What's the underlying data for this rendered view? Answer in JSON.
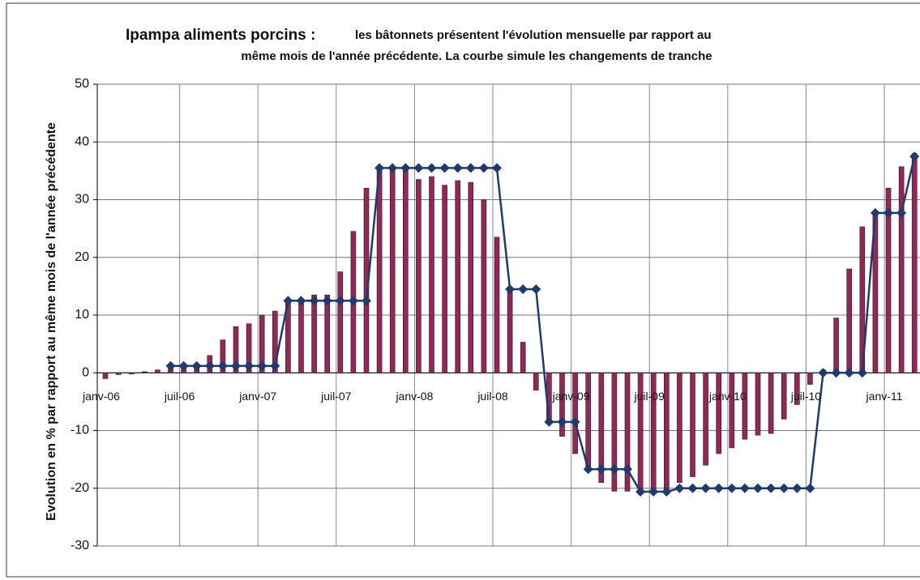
{
  "chart_data": {
    "type": "bar_line",
    "title": "Ipampa aliments porcins :",
    "subtitle": [
      "les bâtonnets présentent l'évolution mensuelle par rapport au",
      "même mois de l'année précédente. La courbe simule les changements de tranche"
    ],
    "y_label": "Evolution en % par rapport au même mois de l'année précédente",
    "categories": [
      "janv-06",
      null,
      null,
      null,
      null,
      null,
      "juil-06",
      null,
      null,
      null,
      null,
      null,
      "janv-07",
      null,
      null,
      null,
      null,
      null,
      "juil-07",
      null,
      null,
      null,
      null,
      null,
      "janv-08",
      null,
      null,
      null,
      null,
      null,
      "juil-08",
      null,
      null,
      null,
      null,
      null,
      "janv-09",
      null,
      null,
      null,
      null,
      null,
      "juil-09",
      null,
      null,
      null,
      null,
      null,
      "janv-10",
      null,
      null,
      null,
      null,
      null,
      "juil-10",
      null,
      null,
      null,
      null,
      null,
      "janv-11",
      null,
      null
    ],
    "series": [
      {
        "name": "Evolution mensuelle",
        "kind": "bar",
        "color": "#8e2a55",
        "values": [
          -1,
          -0.3,
          -0.2,
          0.2,
          0.5,
          1,
          1.2,
          1.5,
          3,
          5.7,
          8,
          8.5,
          10,
          10.7,
          12.5,
          12.8,
          13.5,
          13.5,
          17.5,
          24.5,
          32,
          35.5,
          35.5,
          35,
          33.5,
          34,
          32.5,
          33.3,
          33,
          30,
          23.5,
          14.5,
          5.3,
          -3,
          -8.5,
          -11,
          -14,
          -17,
          -19,
          -20.5,
          -20.5,
          -21,
          -20.5,
          -20.5,
          -19,
          -18,
          -16,
          -14,
          -13,
          -11.5,
          -10.8,
          -10.5,
          -8,
          -5.5,
          -2,
          0.5,
          9.5,
          18,
          25.3,
          28,
          32,
          35.7,
          38
        ]
      },
      {
        "name": "Changements de tranche",
        "kind": "line",
        "color": "#1f3a70",
        "values": [
          null,
          null,
          null,
          null,
          null,
          1.2,
          1.2,
          1.2,
          1.2,
          1.2,
          1.2,
          1.2,
          1.2,
          1.2,
          12.5,
          12.5,
          12.5,
          12.5,
          12.5,
          12.5,
          12.5,
          35.5,
          35.5,
          35.5,
          35.5,
          35.5,
          35.5,
          35.5,
          35.5,
          35.5,
          35.5,
          14.5,
          14.5,
          14.5,
          -8.5,
          -8.5,
          -8.5,
          -16.7,
          -16.7,
          -16.7,
          -16.7,
          -20.6,
          -20.6,
          -20.6,
          -20,
          -20,
          -20,
          -20,
          -20,
          -20,
          -20,
          -20,
          -20,
          -20,
          -20,
          0,
          0,
          0,
          0,
          27.7,
          27.7,
          27.7,
          37.5
        ]
      }
    ],
    "ylim": [
      -30,
      50
    ],
    "yticks": [
      -30,
      -20,
      -10,
      0,
      10,
      20,
      30,
      40,
      50
    ],
    "grid": true
  }
}
